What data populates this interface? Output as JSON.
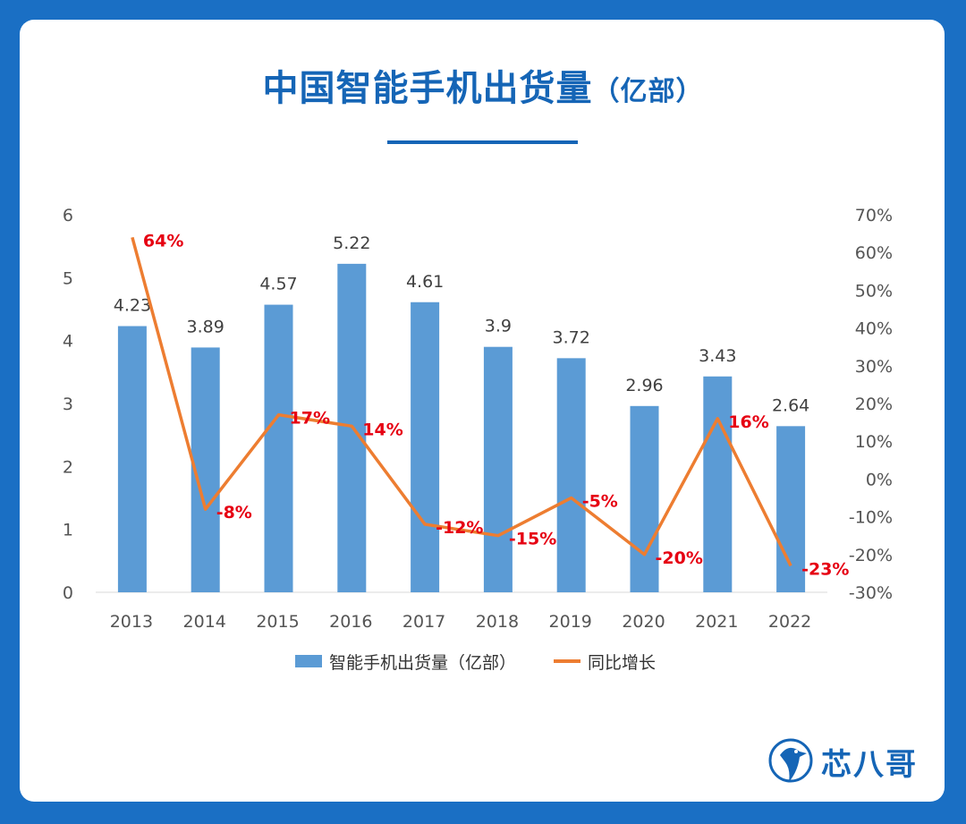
{
  "header": {
    "title": "中国智能手机出货量",
    "title_unit": "（亿部）"
  },
  "legend": {
    "bar_label": "智能手机出货量（亿部）",
    "line_label": "同比增长"
  },
  "brand": {
    "name": "芯八哥",
    "logo_icon": "kingfisher-logo-icon"
  },
  "colors": {
    "bar": "#5b9bd5",
    "line": "#ed7d31",
    "pct_label": "#e60012",
    "title": "#1565b6",
    "background": "#1a6fc4"
  },
  "chart_data": {
    "type": "bar+line",
    "title": "中国智能手机出货量（亿部）",
    "categories": [
      "2013",
      "2014",
      "2015",
      "2016",
      "2017",
      "2018",
      "2019",
      "2020",
      "2021",
      "2022"
    ],
    "series": [
      {
        "name": "智能手机出货量（亿部）",
        "type": "bar",
        "axis": "left",
        "values": [
          4.23,
          3.89,
          4.57,
          5.22,
          4.61,
          3.9,
          3.72,
          2.96,
          3.43,
          2.64
        ],
        "labels": [
          "4.23",
          "3.89",
          "4.57",
          "5.22",
          "4.61",
          "3.9",
          "3.72",
          "2.96",
          "3.43",
          "2.64"
        ]
      },
      {
        "name": "同比增长",
        "type": "line",
        "axis": "right",
        "values": [
          64,
          -8,
          17,
          14,
          -12,
          -15,
          -5,
          -20,
          16,
          -23
        ],
        "labels": [
          "64%",
          "-8%",
          "17%",
          "14%",
          "-12%",
          "-15%",
          "-5%",
          "-20%",
          "16%",
          "-23%"
        ]
      }
    ],
    "y_left": {
      "ticks": [
        "0",
        "1",
        "2",
        "3",
        "4",
        "5",
        "6"
      ],
      "ylim": [
        0,
        6
      ]
    },
    "y_right": {
      "ticks": [
        "-30%",
        "-20%",
        "-10%",
        "0%",
        "10%",
        "20%",
        "30%",
        "40%",
        "50%",
        "60%",
        "70%"
      ],
      "ylim": [
        -30,
        70
      ]
    },
    "grid": false,
    "legend_position": "bottom"
  }
}
